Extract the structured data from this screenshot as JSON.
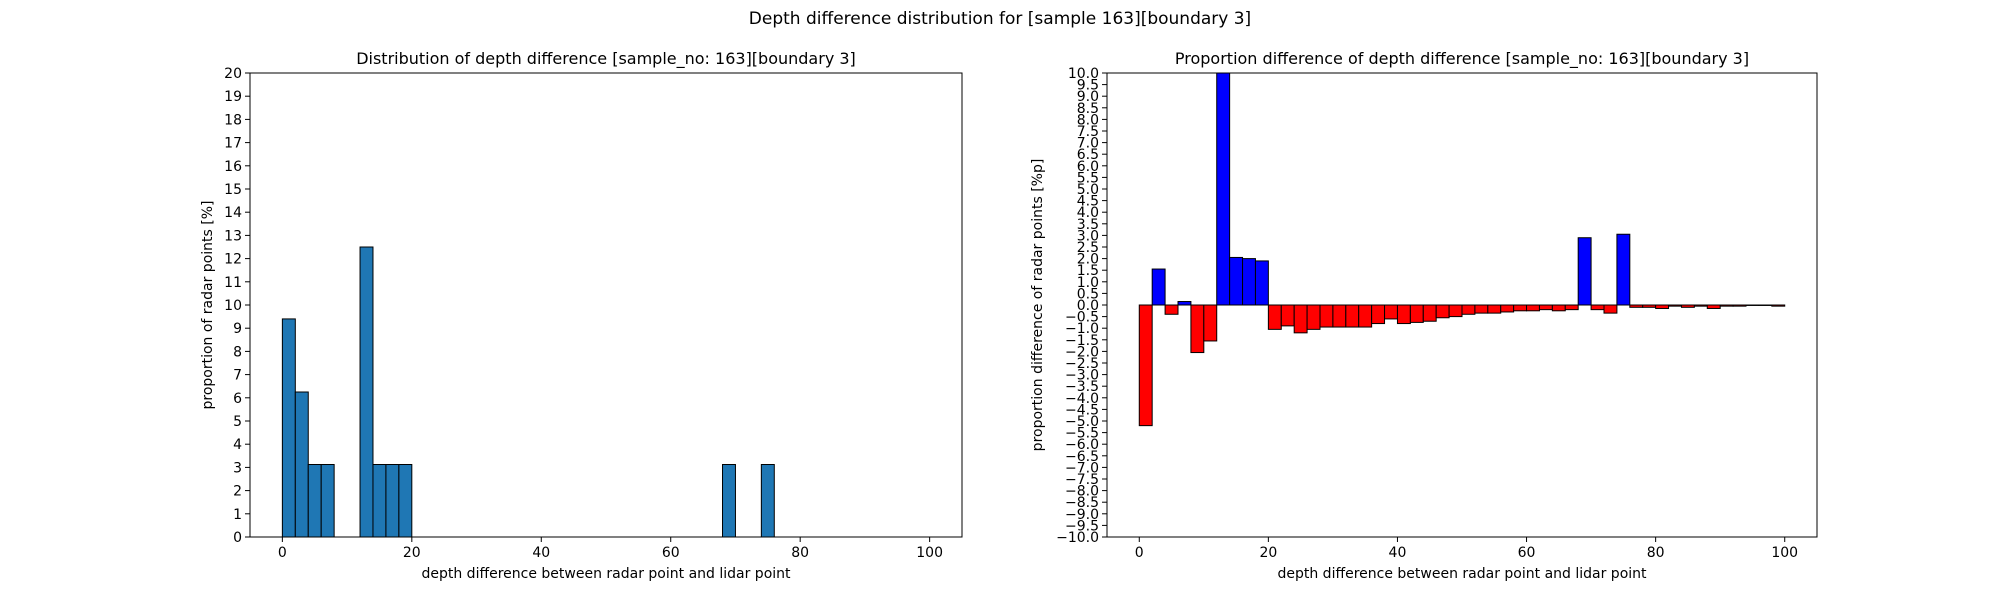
{
  "suptitle": "Depth difference distribution for [sample 163][boundary 3]",
  "chart_data": [
    {
      "type": "bar",
      "title": "Distribution of depth difference [sample_no: 163][boundary 3]",
      "xlabel": "depth difference between radar point and lidar point",
      "ylabel": "proportion of radar points [%]",
      "xlim": [
        -5,
        105
      ],
      "ylim": [
        0,
        20
      ],
      "xticks": [
        0,
        20,
        40,
        60,
        80,
        100
      ],
      "yticks": [
        0,
        1,
        2,
        3,
        4,
        5,
        6,
        7,
        8,
        9,
        10,
        11,
        12,
        13,
        14,
        15,
        16,
        17,
        18,
        19,
        20
      ],
      "bin_width": 2,
      "bars": [
        {
          "x": 0,
          "value": 9.4
        },
        {
          "x": 2,
          "value": 6.25
        },
        {
          "x": 4,
          "value": 3.125
        },
        {
          "x": 6,
          "value": 3.125
        },
        {
          "x": 12,
          "value": 12.5
        },
        {
          "x": 14,
          "value": 3.125
        },
        {
          "x": 16,
          "value": 3.125
        },
        {
          "x": 18,
          "value": 3.125
        },
        {
          "x": 68,
          "value": 3.125
        },
        {
          "x": 74,
          "value": 3.125
        }
      ],
      "colors": {
        "bar": "#1f77b4"
      }
    },
    {
      "type": "bar",
      "title": "Proportion difference of depth difference [sample_no: 163][boundary 3]",
      "xlabel": "depth difference between radar point and lidar point",
      "ylabel": "proportion difference of radar points [%p]",
      "xlim": [
        -5,
        105
      ],
      "ylim": [
        -10,
        10
      ],
      "xticks": [
        0,
        20,
        40,
        60,
        80,
        100
      ],
      "yticks": [
        -10.0,
        -9.5,
        -9.0,
        -8.5,
        -8.0,
        -7.5,
        -7.0,
        -6.5,
        -6.0,
        -5.5,
        -5.0,
        -4.5,
        -4.0,
        -3.5,
        -3.0,
        -2.5,
        -2.0,
        -1.5,
        -1.0,
        -0.5,
        0.0,
        0.5,
        1.0,
        1.5,
        2.0,
        2.5,
        3.0,
        3.5,
        4.0,
        4.5,
        5.0,
        5.5,
        6.0,
        6.5,
        7.0,
        7.5,
        8.0,
        8.5,
        9.0,
        9.5,
        10.0
      ],
      "bin_width": 2,
      "bars": [
        {
          "x": 0,
          "value": -5.2
        },
        {
          "x": 2,
          "value": 1.55
        },
        {
          "x": 4,
          "value": -0.4
        },
        {
          "x": 6,
          "value": 0.15
        },
        {
          "x": 8,
          "value": -2.05
        },
        {
          "x": 10,
          "value": -1.55
        },
        {
          "x": 12,
          "value": 10.0
        },
        {
          "x": 14,
          "value": 2.05
        },
        {
          "x": 16,
          "value": 2.0
        },
        {
          "x": 18,
          "value": 1.9
        },
        {
          "x": 20,
          "value": -1.05
        },
        {
          "x": 22,
          "value": -0.9
        },
        {
          "x": 24,
          "value": -1.2
        },
        {
          "x": 26,
          "value": -1.05
        },
        {
          "x": 28,
          "value": -0.95
        },
        {
          "x": 30,
          "value": -0.95
        },
        {
          "x": 32,
          "value": -0.95
        },
        {
          "x": 34,
          "value": -0.95
        },
        {
          "x": 36,
          "value": -0.8
        },
        {
          "x": 38,
          "value": -0.6
        },
        {
          "x": 40,
          "value": -0.8
        },
        {
          "x": 42,
          "value": -0.75
        },
        {
          "x": 44,
          "value": -0.7
        },
        {
          "x": 46,
          "value": -0.55
        },
        {
          "x": 48,
          "value": -0.5
        },
        {
          "x": 50,
          "value": -0.4
        },
        {
          "x": 52,
          "value": -0.35
        },
        {
          "x": 54,
          "value": -0.35
        },
        {
          "x": 56,
          "value": -0.3
        },
        {
          "x": 58,
          "value": -0.25
        },
        {
          "x": 60,
          "value": -0.25
        },
        {
          "x": 62,
          "value": -0.2
        },
        {
          "x": 64,
          "value": -0.25
        },
        {
          "x": 66,
          "value": -0.2
        },
        {
          "x": 68,
          "value": 2.9
        },
        {
          "x": 70,
          "value": -0.2
        },
        {
          "x": 72,
          "value": -0.35
        },
        {
          "x": 74,
          "value": 3.05
        },
        {
          "x": 76,
          "value": -0.1
        },
        {
          "x": 78,
          "value": -0.1
        },
        {
          "x": 80,
          "value": -0.15
        },
        {
          "x": 82,
          "value": -0.05
        },
        {
          "x": 84,
          "value": -0.1
        },
        {
          "x": 86,
          "value": -0.05
        },
        {
          "x": 88,
          "value": -0.15
        },
        {
          "x": 90,
          "value": -0.05
        },
        {
          "x": 92,
          "value": -0.05
        },
        {
          "x": 94,
          "value": -0.02
        },
        {
          "x": 96,
          "value": -0.02
        },
        {
          "x": 98,
          "value": -0.05
        }
      ],
      "colors": {
        "positive": "#0000ff",
        "negative": "#ff0000"
      }
    }
  ]
}
